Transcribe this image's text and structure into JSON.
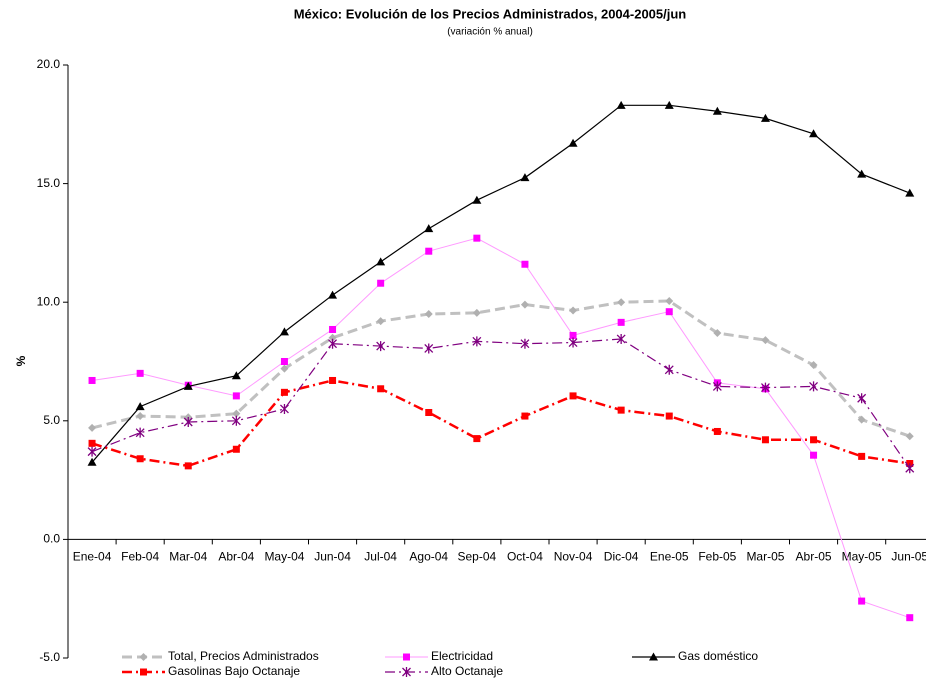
{
  "chart_data": {
    "type": "line",
    "title": "México: Evolución de los Precios Administrados, 2004-2005/jun",
    "subtitle": "(variación % anual)",
    "y_label": "%",
    "categories": [
      "Ene-04",
      "Feb-04",
      "Mar-04",
      "Abr-04",
      "May-04",
      "Jun-04",
      "Jul-04",
      "Ago-04",
      "Sep-04",
      "Oct-04",
      "Nov-04",
      "Dic-04",
      "Ene-05",
      "Feb-05",
      "Mar-05",
      "Abr-05",
      "May-05",
      "Jun-05"
    ],
    "ylim": [
      -5,
      20
    ],
    "yticks": [
      {
        "value": -5,
        "label": "-5.0"
      },
      {
        "value": 0,
        "label": "0.0"
      },
      {
        "value": 5,
        "label": "5.0"
      },
      {
        "value": 10,
        "label": "10.0"
      },
      {
        "value": 15,
        "label": "15.0"
      },
      {
        "value": 20,
        "label": "20.0"
      }
    ],
    "grid": false,
    "series": [
      {
        "name": "Total, Precios Administrados",
        "color": "#c0c0c0",
        "marker_color": "#b0b0b0",
        "marker": "diamond",
        "line_style": "dash",
        "line_width": 3,
        "values": [
          4.7,
          5.2,
          5.15,
          5.3,
          7.2,
          8.5,
          9.2,
          9.5,
          9.55,
          9.9,
          9.65,
          10.0,
          10.05,
          8.7,
          8.4,
          7.35,
          5.05,
          4.35
        ]
      },
      {
        "name": "Electricidad",
        "color": "#ff99ff",
        "marker_color": "#ff00ff",
        "marker": "square",
        "line_style": "solid",
        "line_width": 1,
        "values": [
          6.7,
          7.0,
          6.5,
          6.05,
          7.5,
          8.85,
          10.8,
          12.15,
          12.7,
          11.6,
          8.6,
          9.15,
          9.6,
          6.6,
          6.35,
          3.55,
          -2.6,
          -3.3
        ]
      },
      {
        "name": "Gas doméstico",
        "color": "#000000",
        "marker_color": "#000000",
        "marker": "triangle",
        "line_style": "solid",
        "line_width": 1.2,
        "values": [
          3.25,
          5.6,
          6.45,
          6.9,
          8.75,
          10.3,
          11.7,
          13.1,
          14.3,
          15.25,
          16.7,
          18.3,
          18.3,
          18.05,
          17.75,
          17.1,
          15.4,
          14.6
        ]
      },
      {
        "name": "Gasolinas Bajo Octanaje",
        "color": "#ff0000",
        "marker_color": "#ff0000",
        "marker": "square",
        "line_style": "dashdot",
        "line_width": 2.5,
        "values": [
          4.05,
          3.4,
          3.1,
          3.8,
          6.2,
          6.7,
          6.35,
          5.35,
          4.25,
          5.2,
          6.05,
          5.45,
          5.2,
          4.55,
          4.2,
          4.2,
          3.5,
          3.2
        ]
      },
      {
        "name": "Alto Octanaje",
        "color": "#800080",
        "marker_color": "#800080",
        "marker": "star",
        "line_style": "dashdot",
        "line_width": 1.2,
        "values": [
          3.7,
          4.5,
          4.95,
          5.0,
          5.5,
          8.25,
          8.15,
          8.05,
          8.35,
          8.25,
          8.3,
          8.45,
          7.15,
          6.45,
          6.4,
          6.45,
          5.95,
          3.0
        ]
      }
    ]
  }
}
